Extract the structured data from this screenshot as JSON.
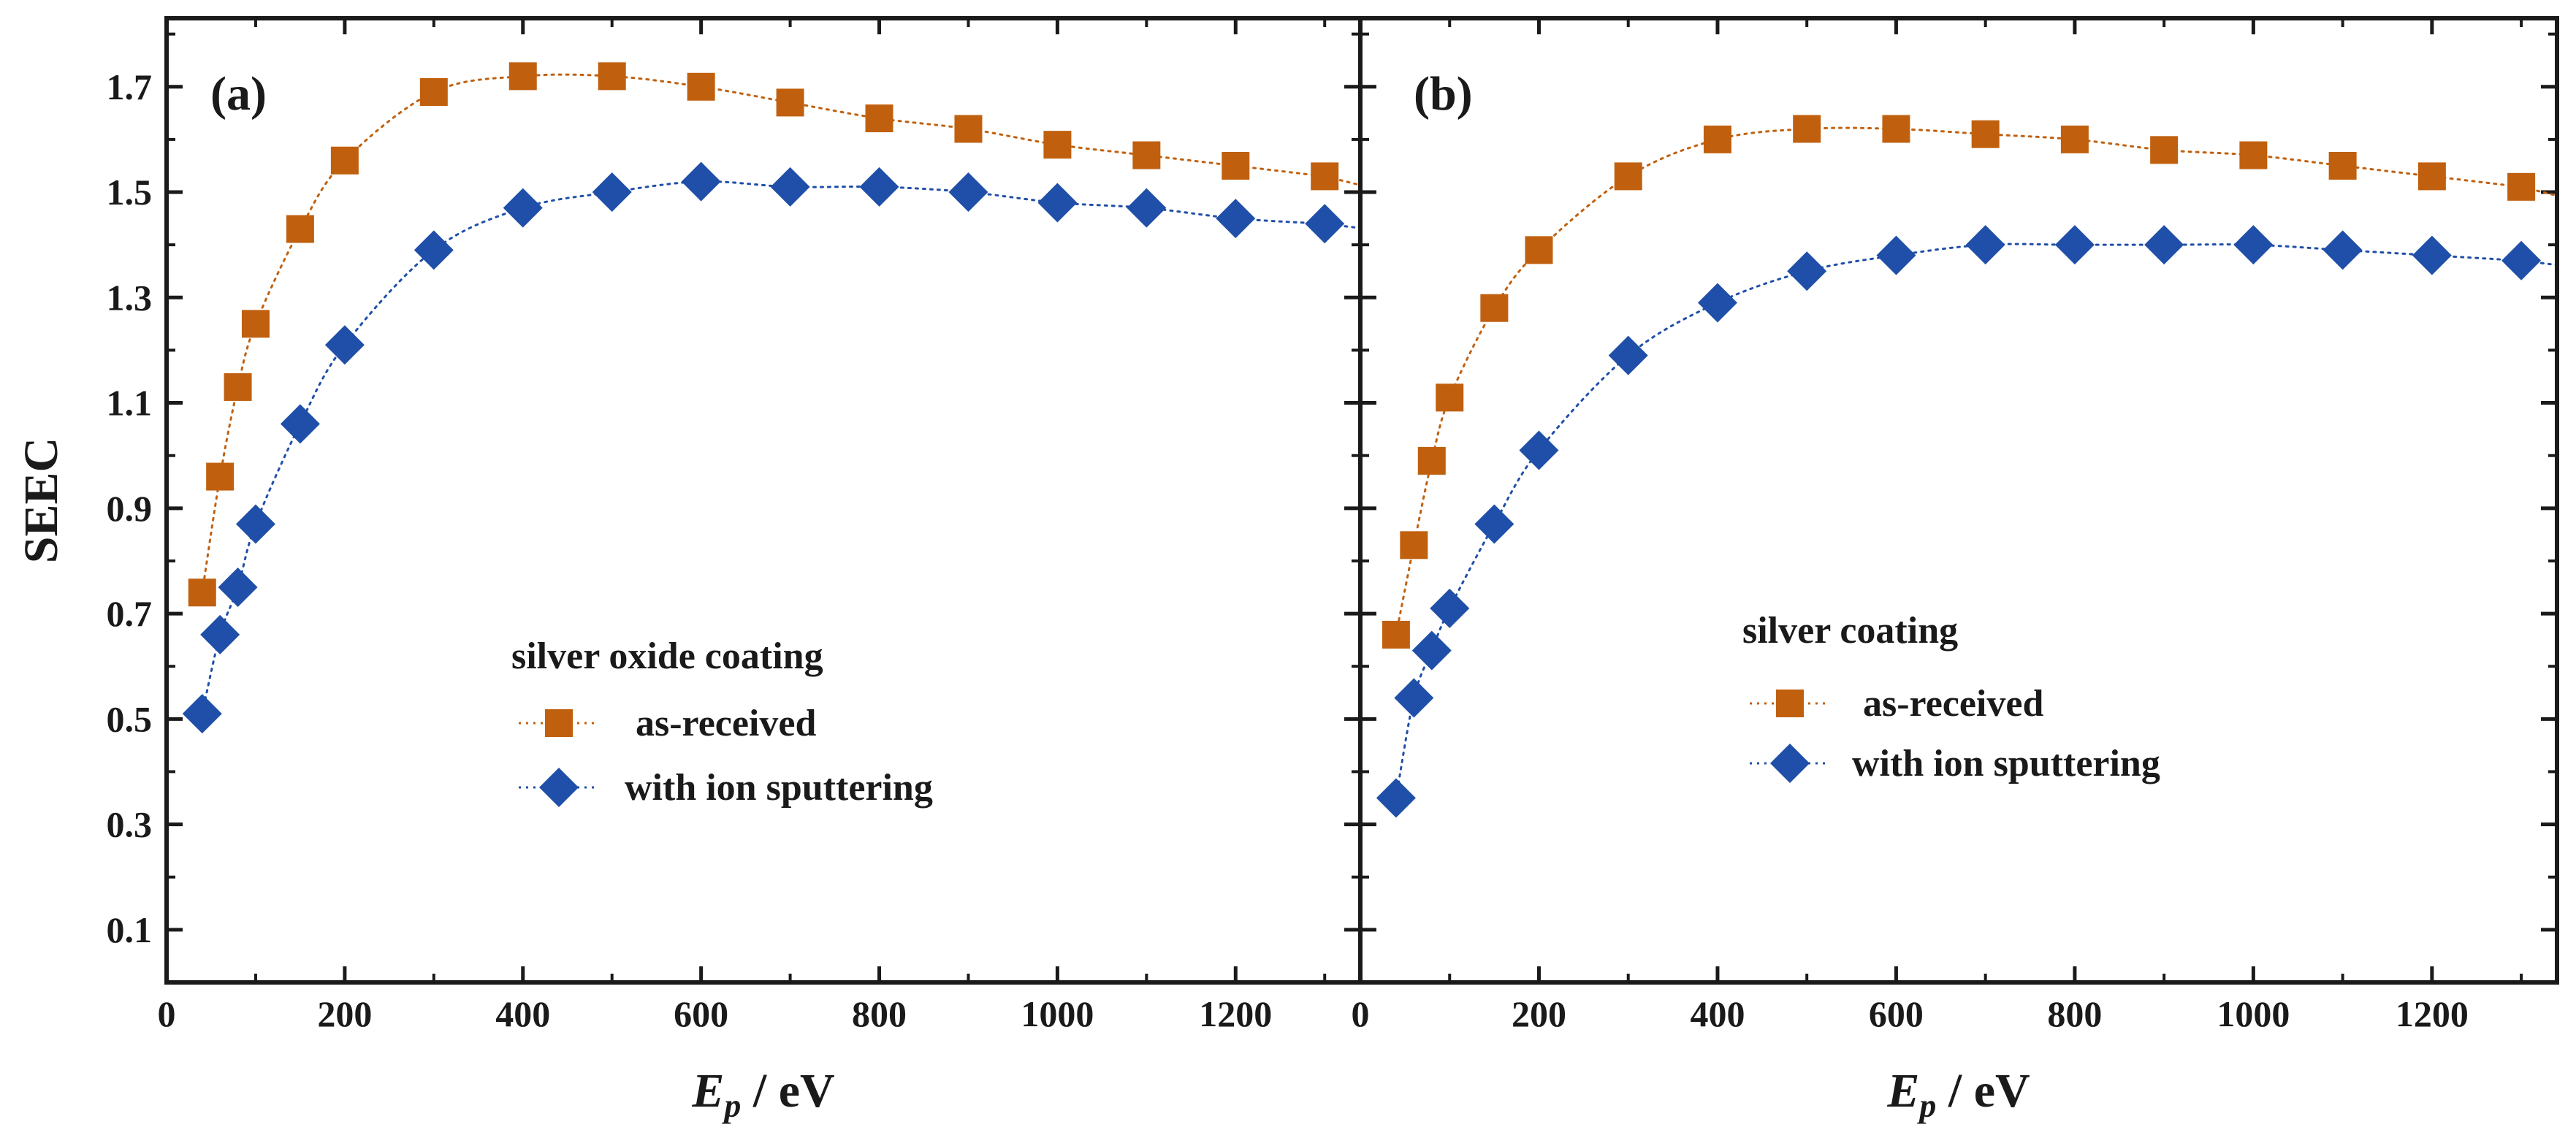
{
  "colors": {
    "as_received": "#c0600f",
    "sputtered": "#1f4fa8",
    "axis": "#1a1a1a"
  },
  "chart_data": [
    {
      "type": "scatter",
      "panel_label": "(a)",
      "legend_title": "silver oxide coating",
      "xlabel_main": "E",
      "xlabel_sub": "p",
      "xlabel_unit": " / eV",
      "ylabel": "SEEC",
      "xlim": [
        0,
        1340
      ],
      "ylim": [
        0.0,
        1.83
      ],
      "xticks": [
        0,
        200,
        400,
        600,
        800,
        1000,
        1200
      ],
      "yticks": [
        0.1,
        0.3,
        0.5,
        0.7,
        0.9,
        1.1,
        1.3,
        1.5,
        1.7
      ],
      "ytick_labels": [
        "0.1",
        "0.3",
        "0.5",
        "0.7",
        "0.9",
        "1.1",
        "1.3",
        "1.5",
        "1.7"
      ],
      "series": [
        {
          "name": "as-received",
          "marker": "square",
          "x": [
            40,
            60,
            80,
            100,
            150,
            200,
            300,
            400,
            500,
            600,
            700,
            800,
            900,
            1000,
            1100,
            1200,
            1300
          ],
          "y": [
            0.74,
            0.96,
            1.13,
            1.25,
            1.43,
            1.56,
            1.69,
            1.72,
            1.72,
            1.7,
            1.67,
            1.64,
            1.62,
            1.59,
            1.57,
            1.55,
            1.53
          ]
        },
        {
          "name": "with ion sputtering",
          "marker": "diamond",
          "x": [
            40,
            60,
            80,
            100,
            150,
            200,
            300,
            400,
            500,
            600,
            700,
            800,
            900,
            1000,
            1100,
            1200,
            1300
          ],
          "y": [
            0.51,
            0.66,
            0.75,
            0.87,
            1.06,
            1.21,
            1.39,
            1.47,
            1.5,
            1.52,
            1.51,
            1.51,
            1.5,
            1.48,
            1.47,
            1.45,
            1.44
          ]
        }
      ]
    },
    {
      "type": "scatter",
      "panel_label": "(b)",
      "legend_title": "silver  coating",
      "xlabel_main": "E",
      "xlabel_sub": "p",
      "xlabel_unit": " / eV",
      "ylabel": "",
      "xlim": [
        0,
        1340
      ],
      "ylim": [
        0.0,
        1.83
      ],
      "xticks": [
        0,
        200,
        400,
        600,
        800,
        1000,
        1200
      ],
      "yticks": [
        0.1,
        0.3,
        0.5,
        0.7,
        0.9,
        1.1,
        1.3,
        1.5,
        1.7
      ],
      "ytick_labels": [],
      "series": [
        {
          "name": "as-received",
          "marker": "square",
          "x": [
            40,
            60,
            80,
            100,
            150,
            200,
            300,
            400,
            500,
            600,
            700,
            800,
            900,
            1000,
            1100,
            1200,
            1300
          ],
          "y": [
            0.66,
            0.83,
            0.99,
            1.11,
            1.28,
            1.39,
            1.53,
            1.6,
            1.62,
            1.62,
            1.61,
            1.6,
            1.58,
            1.57,
            1.55,
            1.53,
            1.51
          ]
        },
        {
          "name": "with ion sputtering",
          "marker": "diamond",
          "x": [
            40,
            60,
            80,
            100,
            150,
            200,
            300,
            400,
            500,
            600,
            700,
            800,
            900,
            1000,
            1100,
            1200,
            1300
          ],
          "y": [
            0.35,
            0.54,
            0.63,
            0.71,
            0.87,
            1.01,
            1.19,
            1.29,
            1.35,
            1.38,
            1.4,
            1.4,
            1.4,
            1.4,
            1.39,
            1.38,
            1.37
          ]
        }
      ]
    }
  ]
}
